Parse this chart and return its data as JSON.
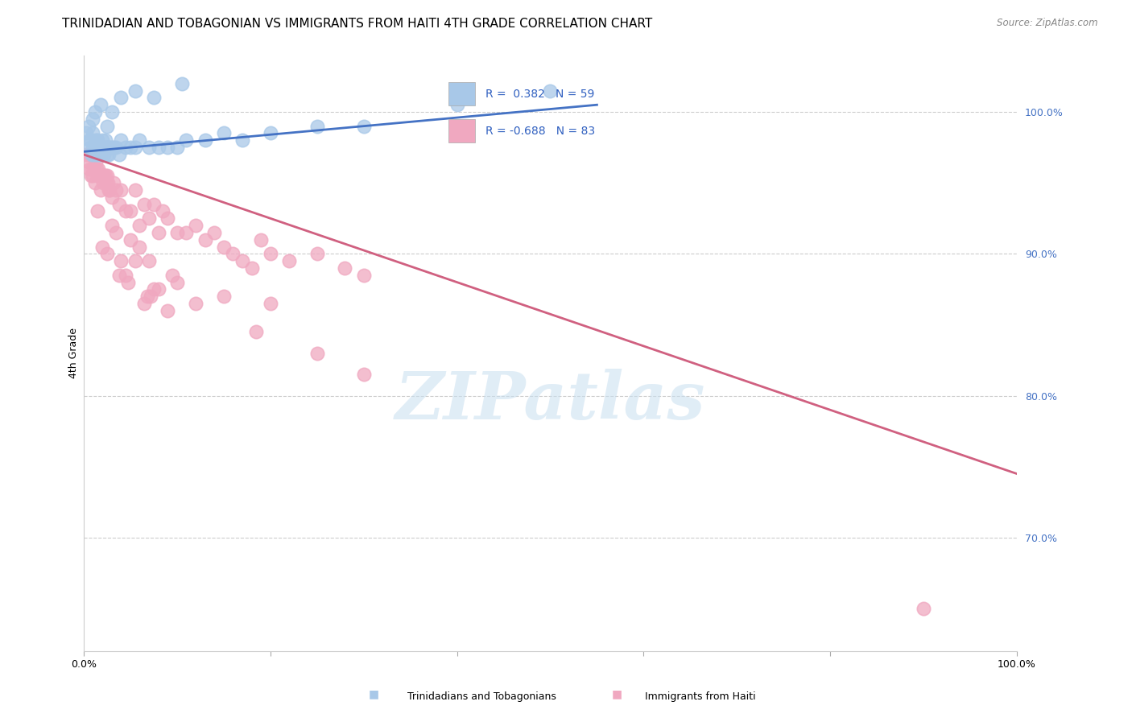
{
  "title": "TRINIDADIAN AND TOBAGONIAN VS IMMIGRANTS FROM HAITI 4TH GRADE CORRELATION CHART",
  "source": "Source: ZipAtlas.com",
  "ylabel": "4th Grade",
  "watermark": "ZIPatlas",
  "xlim": [
    0.0,
    100.0
  ],
  "ylim": [
    62.0,
    104.0
  ],
  "y_ticks_right": [
    70.0,
    80.0,
    90.0,
    100.0
  ],
  "y_tick_labels_right": [
    "70.0%",
    "80.0%",
    "90.0%",
    "100.0%"
  ],
  "blue_scatter_color": "#a8c8e8",
  "pink_scatter_color": "#f0a8c0",
  "blue_line_color": "#4472c4",
  "pink_line_color": "#d06080",
  "background_color": "#ffffff",
  "title_fontsize": 11,
  "axis_label_fontsize": 9,
  "tick_fontsize": 9,
  "blue_scatter_x": [
    0.3,
    0.5,
    0.6,
    0.7,
    0.8,
    0.9,
    1.0,
    1.0,
    1.1,
    1.2,
    1.3,
    1.4,
    1.5,
    1.5,
    1.6,
    1.7,
    1.8,
    1.9,
    2.0,
    2.0,
    2.1,
    2.2,
    2.3,
    2.4,
    2.5,
    2.6,
    2.7,
    2.8,
    3.0,
    3.2,
    3.5,
    3.8,
    4.0,
    4.5,
    5.0,
    5.5,
    6.0,
    7.0,
    8.0,
    9.0,
    10.0,
    11.0,
    13.0,
    15.0,
    17.0,
    20.0,
    25.0,
    30.0,
    40.0,
    1.0,
    1.2,
    1.8,
    2.5,
    3.0,
    4.0,
    5.5,
    7.5,
    10.5,
    50.0
  ],
  "blue_scatter_y": [
    98.5,
    99.0,
    98.0,
    97.5,
    98.0,
    97.0,
    97.5,
    98.5,
    97.0,
    97.5,
    98.0,
    97.0,
    97.5,
    98.0,
    97.0,
    97.5,
    97.0,
    97.5,
    97.5,
    98.0,
    97.5,
    97.0,
    98.0,
    97.5,
    97.0,
    97.5,
    97.0,
    97.5,
    97.5,
    97.5,
    97.5,
    97.0,
    98.0,
    97.5,
    97.5,
    97.5,
    98.0,
    97.5,
    97.5,
    97.5,
    97.5,
    98.0,
    98.0,
    98.5,
    98.0,
    98.5,
    99.0,
    99.0,
    100.5,
    99.5,
    100.0,
    100.5,
    99.0,
    100.0,
    101.0,
    101.5,
    101.0,
    102.0,
    101.5
  ],
  "pink_scatter_x": [
    0.3,
    0.5,
    0.6,
    0.7,
    0.8,
    0.9,
    1.0,
    1.1,
    1.2,
    1.3,
    1.4,
    1.5,
    1.6,
    1.7,
    1.8,
    1.9,
    2.0,
    2.1,
    2.2,
    2.3,
    2.4,
    2.5,
    2.6,
    2.7,
    2.8,
    3.0,
    3.2,
    3.5,
    3.8,
    4.0,
    4.5,
    5.0,
    5.5,
    6.0,
    6.5,
    7.0,
    7.5,
    8.0,
    8.5,
    9.0,
    10.0,
    11.0,
    12.0,
    13.0,
    14.0,
    15.0,
    16.0,
    17.0,
    18.0,
    19.0,
    20.0,
    22.0,
    25.0,
    28.0,
    30.0,
    3.0,
    5.0,
    7.0,
    10.0,
    15.0,
    20.0,
    1.5,
    3.5,
    6.0,
    9.5,
    4.0,
    2.5,
    3.8,
    6.8,
    12.0,
    8.0,
    5.5,
    7.5,
    4.5,
    2.0,
    6.5,
    9.0,
    18.5,
    25.0,
    30.0,
    4.8,
    7.2,
    90.0
  ],
  "pink_scatter_y": [
    97.0,
    96.5,
    96.0,
    97.0,
    95.5,
    96.0,
    95.5,
    96.0,
    95.0,
    96.5,
    96.0,
    95.5,
    96.0,
    95.5,
    94.5,
    95.5,
    95.5,
    95.0,
    95.5,
    95.5,
    95.0,
    95.5,
    95.0,
    94.5,
    94.5,
    94.0,
    95.0,
    94.5,
    93.5,
    94.5,
    93.0,
    93.0,
    94.5,
    92.0,
    93.5,
    92.5,
    93.5,
    91.5,
    93.0,
    92.5,
    91.5,
    91.5,
    92.0,
    91.0,
    91.5,
    90.5,
    90.0,
    89.5,
    89.0,
    91.0,
    90.0,
    89.5,
    90.0,
    89.0,
    88.5,
    92.0,
    91.0,
    89.5,
    88.0,
    87.0,
    86.5,
    93.0,
    91.5,
    90.5,
    88.5,
    89.5,
    90.0,
    88.5,
    87.0,
    86.5,
    87.5,
    89.5,
    87.5,
    88.5,
    90.5,
    86.5,
    86.0,
    84.5,
    83.0,
    81.5,
    88.0,
    87.0,
    65.0
  ],
  "blue_trendline_x": [
    0.0,
    55.0
  ],
  "blue_trendline_y": [
    97.2,
    100.5
  ],
  "pink_trendline_x": [
    0.0,
    100.0
  ],
  "pink_trendline_y": [
    97.0,
    74.5
  ]
}
